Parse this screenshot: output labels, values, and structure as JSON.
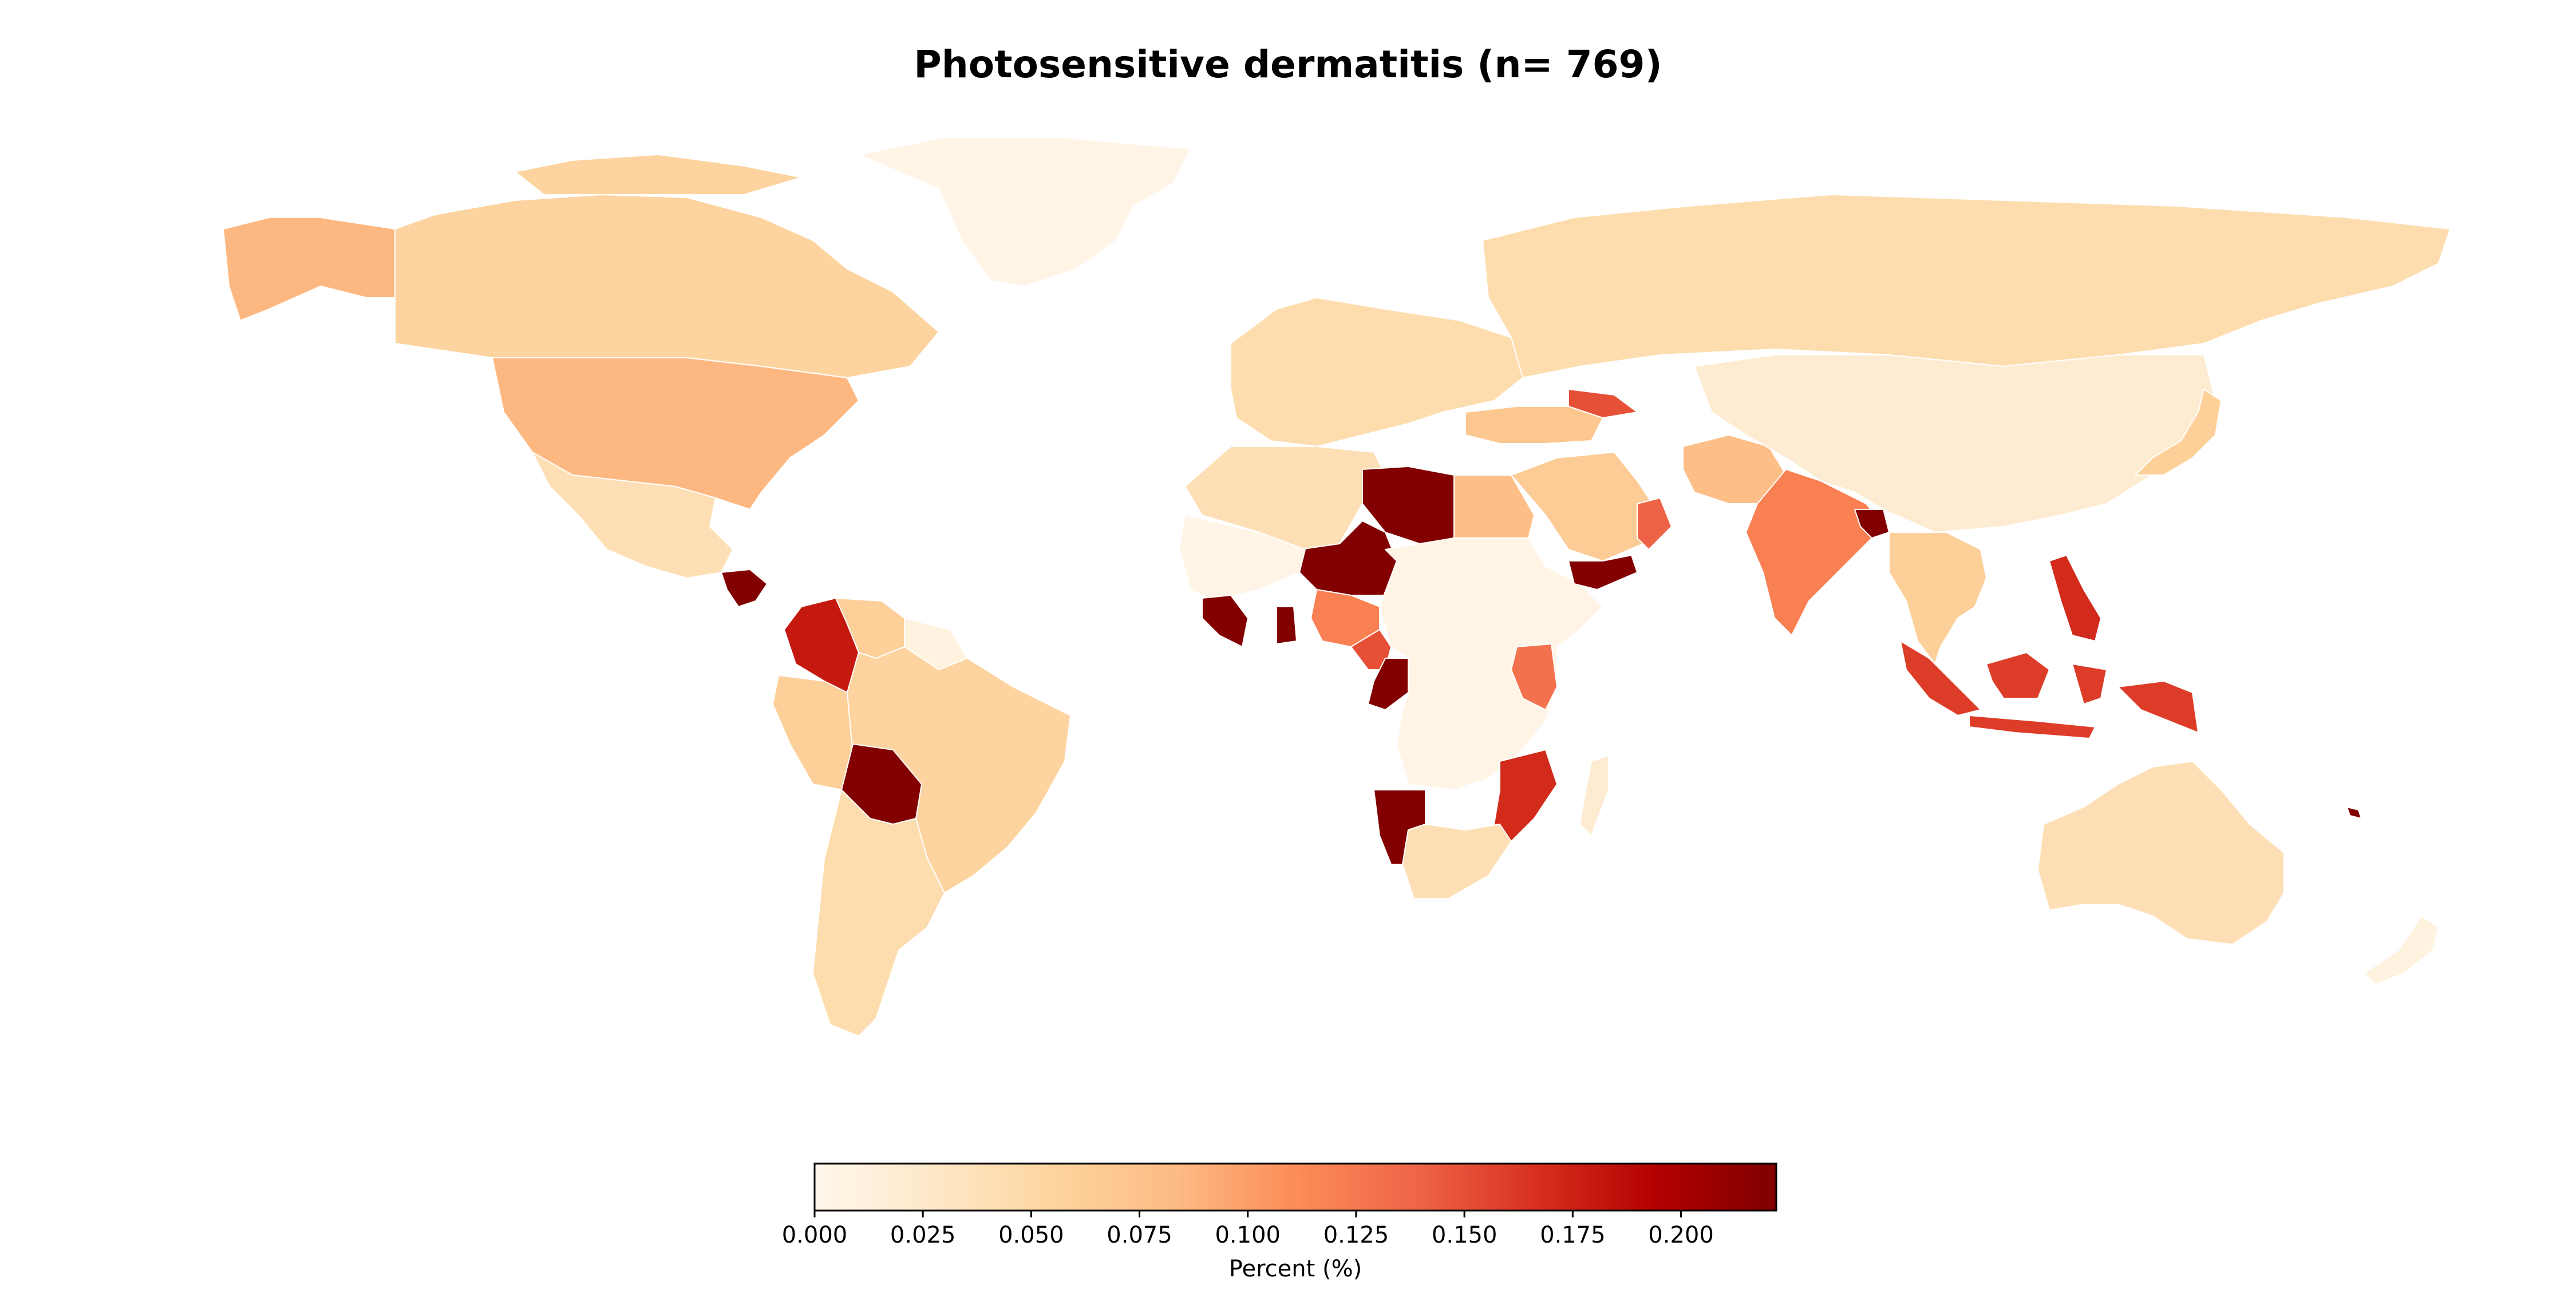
{
  "title": "Photosensitive dermatitis (n= 769)",
  "colorbar": {
    "label": "Percent (%)",
    "min": 0.0,
    "max": 0.222,
    "ticks": [
      "0.000",
      "0.025",
      "0.050",
      "0.075",
      "0.100",
      "0.125",
      "0.150",
      "0.175",
      "0.200"
    ],
    "colormap": "OrRd",
    "stops": [
      "#fff7ec",
      "#fee8c8",
      "#fdd49e",
      "#fdbb84",
      "#fc8d59",
      "#ef6548",
      "#d7301f",
      "#b30000",
      "#7f0000"
    ]
  },
  "chart_data": {
    "type": "choropleth",
    "title": "Photosensitive dermatitis (n= 769)",
    "colorbar_label": "Percent (%)",
    "value_range": [
      0.0,
      0.222
    ],
    "values": [
      {
        "region": "Canada",
        "value": 0.055
      },
      {
        "region": "United States",
        "value": 0.085
      },
      {
        "region": "Alaska",
        "value": 0.085
      },
      {
        "region": "Greenland",
        "value": 0.005
      },
      {
        "region": "Mexico",
        "value": 0.04
      },
      {
        "region": "Guatemala / Honduras",
        "value": 0.22
      },
      {
        "region": "Colombia",
        "value": 0.18
      },
      {
        "region": "Venezuela",
        "value": 0.06
      },
      {
        "region": "Guyana / Suriname",
        "value": 0.01
      },
      {
        "region": "Peru",
        "value": 0.06
      },
      {
        "region": "Brazil",
        "value": 0.055
      },
      {
        "region": "Bolivia",
        "value": 0.22
      },
      {
        "region": "Argentina / Chile",
        "value": 0.045
      },
      {
        "region": "Western Europe",
        "value": 0.045
      },
      {
        "region": "Russia",
        "value": 0.045
      },
      {
        "region": "Turkey",
        "value": 0.07
      },
      {
        "region": "Caucasus",
        "value": 0.15
      },
      {
        "region": "North Africa (Algeria)",
        "value": 0.04
      },
      {
        "region": "Libya",
        "value": 0.22
      },
      {
        "region": "Egypt",
        "value": 0.08
      },
      {
        "region": "Niger / Chad",
        "value": 0.22
      },
      {
        "region": "Mali / Mauritania",
        "value": 0.005
      },
      {
        "region": "Sierra Leone / Liberia",
        "value": 0.22
      },
      {
        "region": "Ghana",
        "value": 0.22
      },
      {
        "region": "Nigeria",
        "value": 0.12
      },
      {
        "region": "Cameroon",
        "value": 0.15
      },
      {
        "region": "Gabon / Congo",
        "value": 0.22
      },
      {
        "region": "Central / East Africa",
        "value": 0.005
      },
      {
        "region": "Kenya",
        "value": 0.13
      },
      {
        "region": "Mozambique / Malawi",
        "value": 0.17
      },
      {
        "region": "Namibia",
        "value": 0.22
      },
      {
        "region": "South Africa",
        "value": 0.04
      },
      {
        "region": "Madagascar",
        "value": 0.02
      },
      {
        "region": "Saudi Arabia / Middle East",
        "value": 0.065
      },
      {
        "region": "Yemen",
        "value": 0.22
      },
      {
        "region": "Oman / UAE",
        "value": 0.14
      },
      {
        "region": "Afghanistan / Pakistan",
        "value": 0.08
      },
      {
        "region": "India",
        "value": 0.12
      },
      {
        "region": "Bangladesh",
        "value": 0.22
      },
      {
        "region": "China / Mongolia",
        "value": 0.02
      },
      {
        "region": "Southeast Asia",
        "value": 0.06
      },
      {
        "region": "Philippines",
        "value": 0.17
      },
      {
        "region": "Indonesia",
        "value": 0.16
      },
      {
        "region": "Papua New Guinea",
        "value": 0.16
      },
      {
        "region": "Japan",
        "value": 0.06
      },
      {
        "region": "Australia",
        "value": 0.04
      },
      {
        "region": "New Zealand",
        "value": 0.01
      },
      {
        "region": "Fiji",
        "value": 0.22
      }
    ]
  }
}
